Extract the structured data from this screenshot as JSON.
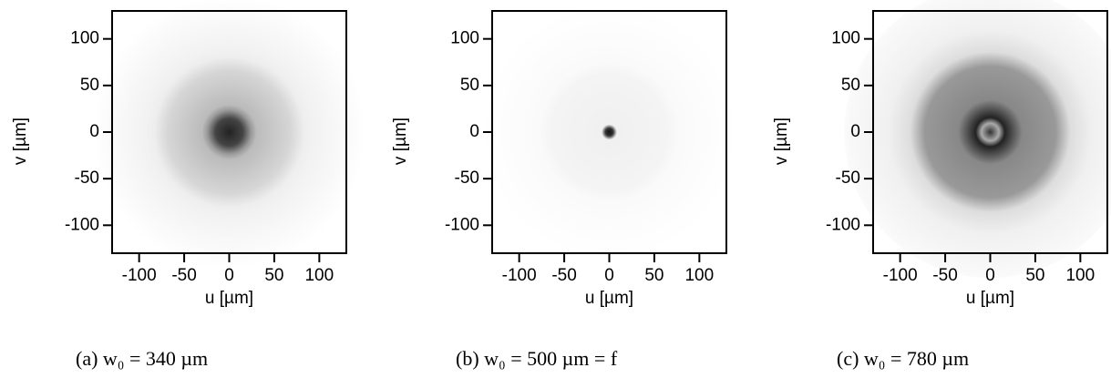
{
  "chart_data": [
    {
      "type": "image",
      "xlabel": "u [µm]",
      "ylabel": "v [µm]",
      "caption": "(a) w₀ = 340 µm",
      "xlim": [
        -130,
        130
      ],
      "ylim": [
        -130,
        130
      ],
      "xticks": [
        -100,
        -50,
        0,
        50,
        100
      ],
      "yticks": [
        -100,
        -50,
        0,
        50,
        100
      ]
    },
    {
      "type": "image",
      "xlabel": "u [µm]",
      "ylabel": "v [µm]",
      "caption": "(b) w₀ = 500 µm = f",
      "xlim": [
        -130,
        130
      ],
      "ylim": [
        -130,
        130
      ],
      "xticks": [
        -100,
        -50,
        0,
        50,
        100
      ],
      "yticks": [
        -100,
        -50,
        0,
        50,
        100
      ]
    },
    {
      "type": "image",
      "xlabel": "u [µm]",
      "ylabel": "v [µm]",
      "caption": "(c) w₀ = 780 µm",
      "xlim": [
        -130,
        130
      ],
      "ylim": [
        -130,
        130
      ],
      "xticks": [
        -100,
        -50,
        0,
        50,
        100
      ],
      "yticks": [
        -100,
        -50,
        0,
        50,
        100
      ]
    }
  ]
}
